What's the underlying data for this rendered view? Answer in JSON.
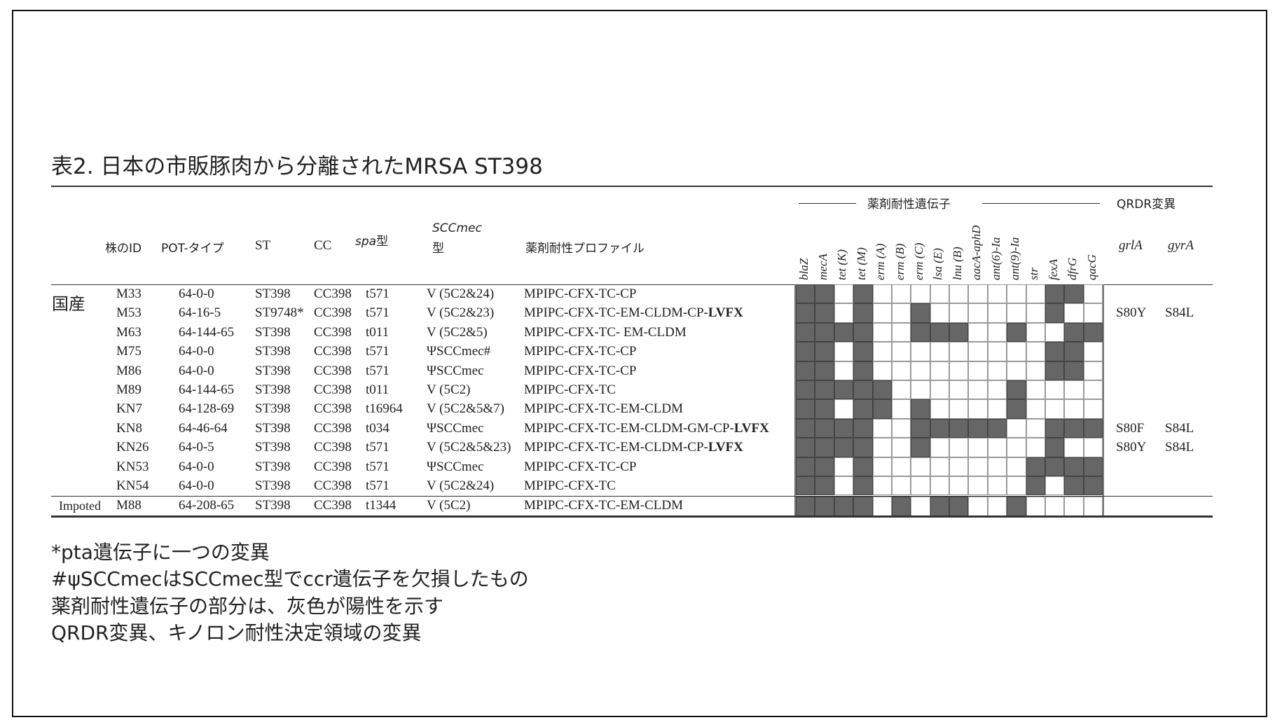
{
  "title": "表2. 日本の市販豚肉から分離されたMRSA ST398",
  "headers": {
    "group_genes": "薬剤耐性遺伝子",
    "group_qrdr": "QRDR変異",
    "id": "株のID",
    "pot": "POT-タイプ",
    "st": "ST",
    "cc": "CC",
    "spa_italic": "spa",
    "spa_suffix": "型",
    "scc_line1": "SCCmec",
    "scc_line2": "型",
    "profile": "薬剤耐性プロファイル",
    "genes": [
      "blaZ",
      "mecA",
      "tet (K)",
      "tet (M)",
      "erm (A)",
      "erm (B)",
      "erm (C)",
      "lsa (E)",
      "lnu (B)",
      "aacA-aphD",
      "ant(6)-Ia",
      "ant(9)-Ia",
      "str",
      "fexA",
      "dfrG",
      "qacG"
    ],
    "grlA": "grlA",
    "gyrA": "gyrA"
  },
  "groups": {
    "domestic": "国産",
    "imported": "Impoted"
  },
  "rows": [
    {
      "id": "M33",
      "pot": "64-0-0",
      "st": "ST398",
      "cc": "CC398",
      "spa": "t571",
      "scc": "V (5C2&24)",
      "profile": "MPIPC-CFX-TC-CP",
      "profile_bold": "",
      "grlA": "",
      "gyrA": "",
      "genes": [
        1,
        1,
        0,
        1,
        0,
        0,
        0,
        0,
        0,
        0,
        0,
        0,
        0,
        1,
        1,
        0
      ]
    },
    {
      "id": "M53",
      "pot": "64-16-5",
      "st": "ST9748*",
      "cc": "CC398",
      "spa": "t571",
      "scc": "V (5C2&23)",
      "profile": "MPIPC-CFX-TC-EM-CLDM-CP-",
      "profile_bold": "LVFX",
      "grlA": "S80Y",
      "gyrA": "S84L",
      "genes": [
        1,
        1,
        0,
        1,
        0,
        0,
        1,
        0,
        0,
        0,
        0,
        0,
        0,
        1,
        0,
        0
      ]
    },
    {
      "id": "M63",
      "pot": "64-144-65",
      "st": "ST398",
      "cc": "CC398",
      "spa": "t011",
      "scc": "V (5C2&5)",
      "profile": "MPIPC-CFX-TC- EM-CLDM",
      "profile_bold": "",
      "grlA": "",
      "gyrA": "",
      "genes": [
        1,
        1,
        1,
        1,
        0,
        0,
        1,
        1,
        1,
        0,
        0,
        1,
        0,
        0,
        1,
        1
      ]
    },
    {
      "id": "M75",
      "pot": "64-0-0",
      "st": "ST398",
      "cc": "CC398",
      "spa": "t571",
      "scc": "ΨSCCmec#",
      "profile": "MPIPC-CFX-TC-CP",
      "profile_bold": "",
      "grlA": "",
      "gyrA": "",
      "genes": [
        1,
        1,
        0,
        1,
        0,
        0,
        0,
        0,
        0,
        0,
        0,
        0,
        0,
        1,
        1,
        0
      ]
    },
    {
      "id": "M86",
      "pot": "64-0-0",
      "st": "ST398",
      "cc": "CC398",
      "spa": "t571",
      "scc": "ΨSCCmec",
      "profile": "MPIPC-CFX-TC-CP",
      "profile_bold": "",
      "grlA": "",
      "gyrA": "",
      "genes": [
        1,
        1,
        0,
        1,
        0,
        0,
        0,
        0,
        0,
        0,
        0,
        0,
        0,
        1,
        1,
        0
      ]
    },
    {
      "id": "M89",
      "pot": "64-144-65",
      "st": "ST398",
      "cc": "CC398",
      "spa": "t011",
      "scc": "V (5C2)",
      "profile": "MPIPC-CFX-TC",
      "profile_bold": "",
      "grlA": "",
      "gyrA": "",
      "genes": [
        1,
        1,
        1,
        1,
        1,
        0,
        0,
        0,
        0,
        0,
        0,
        1,
        0,
        0,
        0,
        0
      ]
    },
    {
      "id": "KN7",
      "pot": "64-128-69",
      "st": "ST398",
      "cc": "CC398",
      "spa": "t16964",
      "scc": "V (5C2&5&7)",
      "profile": "MPIPC-CFX-TC-EM-CLDM",
      "profile_bold": "",
      "grlA": "",
      "gyrA": "",
      "genes": [
        1,
        1,
        0,
        1,
        1,
        0,
        1,
        0,
        0,
        0,
        0,
        1,
        0,
        0,
        0,
        0
      ]
    },
    {
      "id": "KN8",
      "pot": "64-46-64",
      "st": "ST398",
      "cc": "CC398",
      "spa": "t034",
      "scc": "ΨSCCmec",
      "profile": "MPIPC-CFX-TC-EM-CLDM-GM-CP-",
      "profile_bold": "LVFX",
      "grlA": "S80F",
      "gyrA": "S84L",
      "genes": [
        1,
        1,
        1,
        1,
        0,
        0,
        1,
        1,
        1,
        1,
        1,
        0,
        0,
        1,
        1,
        1
      ]
    },
    {
      "id": "KN26",
      "pot": "64-0-5",
      "st": "ST398",
      "cc": "CC398",
      "spa": "t571",
      "scc": "V (5C2&5&23)",
      "profile": "MPIPC-CFX-TC-EM-CLDM-CP-",
      "profile_bold": "LVFX",
      "grlA": "S80Y",
      "gyrA": "S84L",
      "genes": [
        1,
        1,
        1,
        1,
        0,
        0,
        1,
        0,
        0,
        0,
        0,
        0,
        0,
        1,
        0,
        0
      ]
    },
    {
      "id": "KN53",
      "pot": "64-0-0",
      "st": "ST398",
      "cc": "CC398",
      "spa": "t571",
      "scc": "ΨSCCmec",
      "profile": "MPIPC-CFX-TC-CP",
      "profile_bold": "",
      "grlA": "",
      "gyrA": "",
      "genes": [
        1,
        1,
        0,
        1,
        0,
        0,
        0,
        0,
        0,
        0,
        0,
        0,
        1,
        1,
        1,
        1
      ]
    },
    {
      "id": "KN54",
      "pot": "64-0-0",
      "st": "ST398",
      "cc": "CC398",
      "spa": "t571",
      "scc": "V (5C2&24)",
      "profile": "MPIPC-CFX-TC",
      "profile_bold": "",
      "grlA": "",
      "gyrA": "",
      "genes": [
        1,
        1,
        0,
        1,
        0,
        0,
        0,
        0,
        0,
        0,
        0,
        0,
        1,
        0,
        1,
        1
      ]
    },
    {
      "id": "M88",
      "pot": "64-208-65",
      "st": "ST398",
      "cc": "CC398",
      "spa": "t1344",
      "scc": "V (5C2)",
      "profile": "MPIPC-CFX-TC-EM-CLDM",
      "profile_bold": "",
      "grlA": "",
      "gyrA": "",
      "genes": [
        1,
        1,
        1,
        1,
        0,
        1,
        0,
        1,
        1,
        0,
        0,
        1,
        0,
        0,
        0,
        0
      ]
    }
  ],
  "colors": {
    "positive": "#666666",
    "negative": "#ffffff"
  },
  "footnotes": [
    "*pta遺伝子に一つの変異",
    "#ψSCCmecはSCCmec型でccr遺伝子を欠損したもの",
    "薬剤耐性遺伝子の部分は、灰色が陽性を示す",
    "QRDR変異、キノロン耐性決定領域の変異"
  ]
}
